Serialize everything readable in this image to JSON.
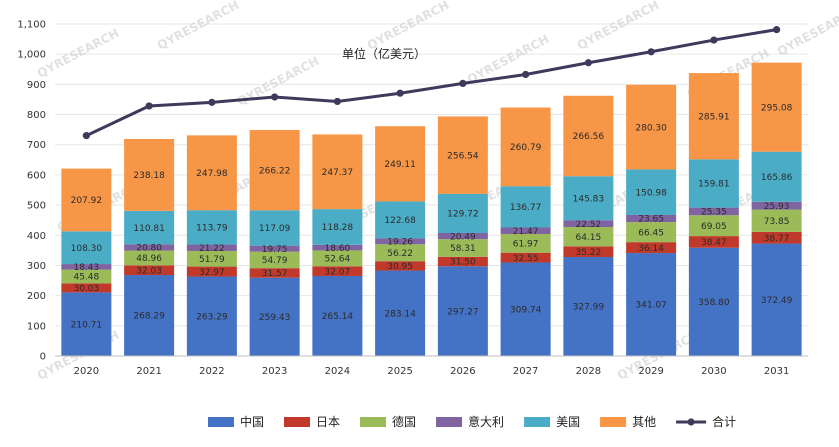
{
  "chart_data": {
    "type": "bar",
    "stacked": true,
    "title": "单位（亿美元）",
    "categories": [
      "2020",
      "2021",
      "2022",
      "2023",
      "2024",
      "2025",
      "2026",
      "2027",
      "2028",
      "2029",
      "2030",
      "2031"
    ],
    "series": [
      {
        "name": "中国",
        "color": "#4472c4",
        "values": [
          210.71,
          268.29,
          263.29,
          259.43,
          265.14,
          283.14,
          297.27,
          309.74,
          327.99,
          341.07,
          358.8,
          372.49
        ]
      },
      {
        "name": "日本",
        "color": "#c0392b",
        "values": [
          30.03,
          32.03,
          32.97,
          31.57,
          32.07,
          30.95,
          31.5,
          32.55,
          35.22,
          36.14,
          38.47,
          38.77
        ]
      },
      {
        "name": "德国",
        "color": "#9bbb59",
        "values": [
          45.48,
          48.96,
          51.79,
          54.79,
          52.64,
          56.22,
          58.31,
          61.97,
          64.15,
          66.45,
          69.05,
          73.85
        ]
      },
      {
        "name": "意大利",
        "color": "#8064a2",
        "values": [
          18.43,
          20.8,
          21.22,
          19.75,
          18.6,
          19.26,
          20.49,
          21.47,
          22.52,
          23.65,
          25.35,
          25.93
        ]
      },
      {
        "name": "美国",
        "color": "#4bacc6",
        "values": [
          108.3,
          110.81,
          113.79,
          117.09,
          118.28,
          122.68,
          129.72,
          136.77,
          145.83,
          150.98,
          159.81,
          165.86
        ]
      },
      {
        "name": "其他",
        "color": "#f79646",
        "values": [
          207.92,
          238.18,
          247.98,
          266.22,
          247.37,
          249.11,
          256.54,
          260.79,
          266.56,
          280.3,
          285.91,
          295.08
        ]
      }
    ],
    "line": {
      "name": "合计",
      "color": "#3d3a5c"
    },
    "yticks": [
      "0",
      "100",
      "200",
      "300",
      "400",
      "500",
      "600",
      "700",
      "800",
      "900",
      "1,000",
      "1,100"
    ],
    "ylim": [
      0,
      1100
    ],
    "grid": true,
    "legend_position": "bottom",
    "watermark": "QYRESEARCH"
  }
}
